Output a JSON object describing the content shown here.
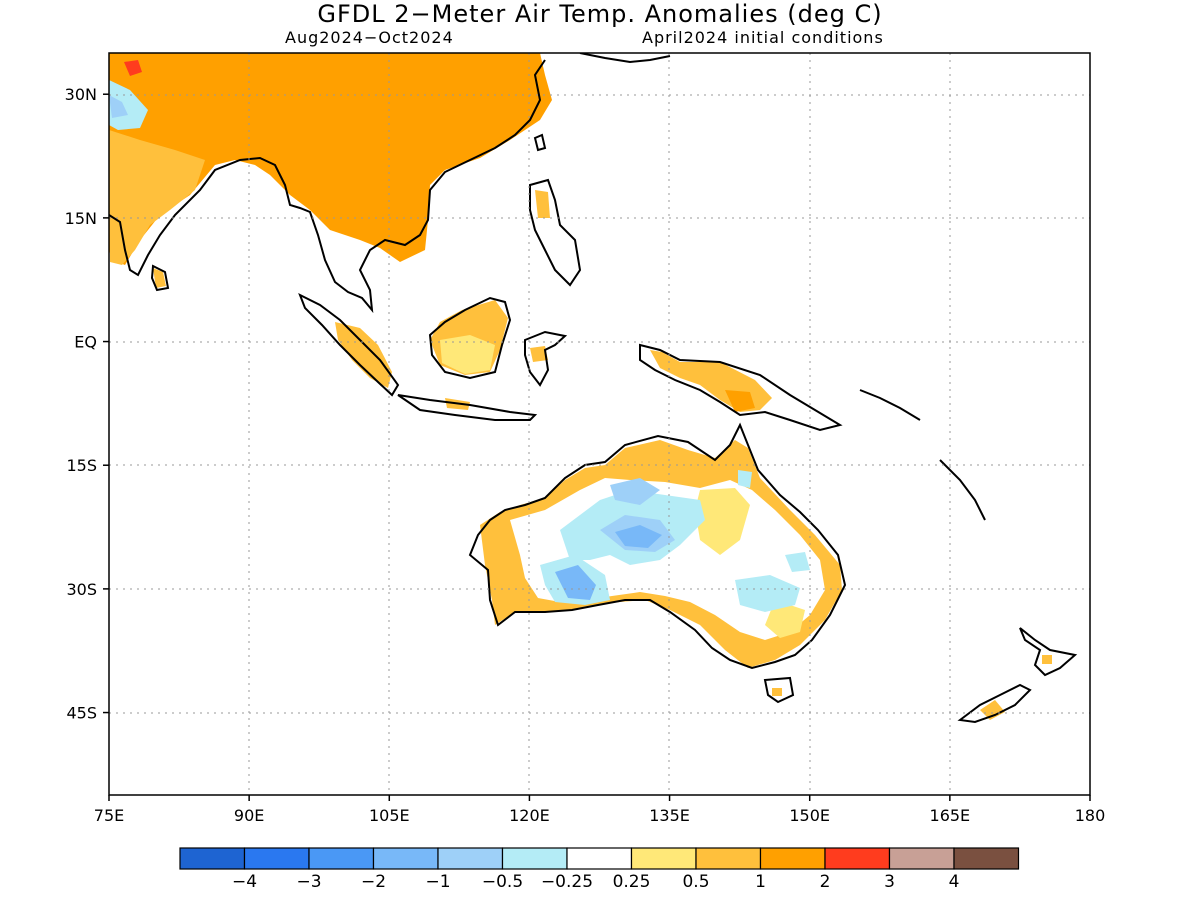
{
  "title": "GFDL 2−Meter Air Temp. Anomalies (deg C)",
  "subtitle_left": "Aug2024−Oct2024",
  "subtitle_right": "April2024 initial conditions",
  "map": {
    "lon_range": [
      75,
      180
    ],
    "lat_range": [
      -55,
      35
    ],
    "lon_ticks": [
      75,
      90,
      105,
      120,
      135,
      150,
      165,
      180
    ],
    "lon_tick_labels": [
      "75E",
      "90E",
      "105E",
      "120E",
      "135E",
      "150E",
      "165E",
      "180"
    ],
    "lat_ticks": [
      30,
      15,
      0,
      -15,
      -30,
      -45
    ],
    "lat_tick_labels": [
      "30N",
      "15N",
      "EQ",
      "15S",
      "30S",
      "45S"
    ],
    "grid": "dotted"
  },
  "colorbar": {
    "colors": [
      "#1e64d2",
      "#2a78f0",
      "#4a98f5",
      "#78b8f8",
      "#9ed0f8",
      "#b4ecf6",
      "#ffffff",
      "#ffe878",
      "#ffc03c",
      "#ffa000",
      "#ff3c1e",
      "#c8a096",
      "#7a5040"
    ],
    "labels": [
      "−4",
      "−3",
      "−2",
      "−1",
      "−0.5",
      "−0.25",
      "0.25",
      "0.5",
      "1",
      "2",
      "3",
      "4"
    ]
  }
}
